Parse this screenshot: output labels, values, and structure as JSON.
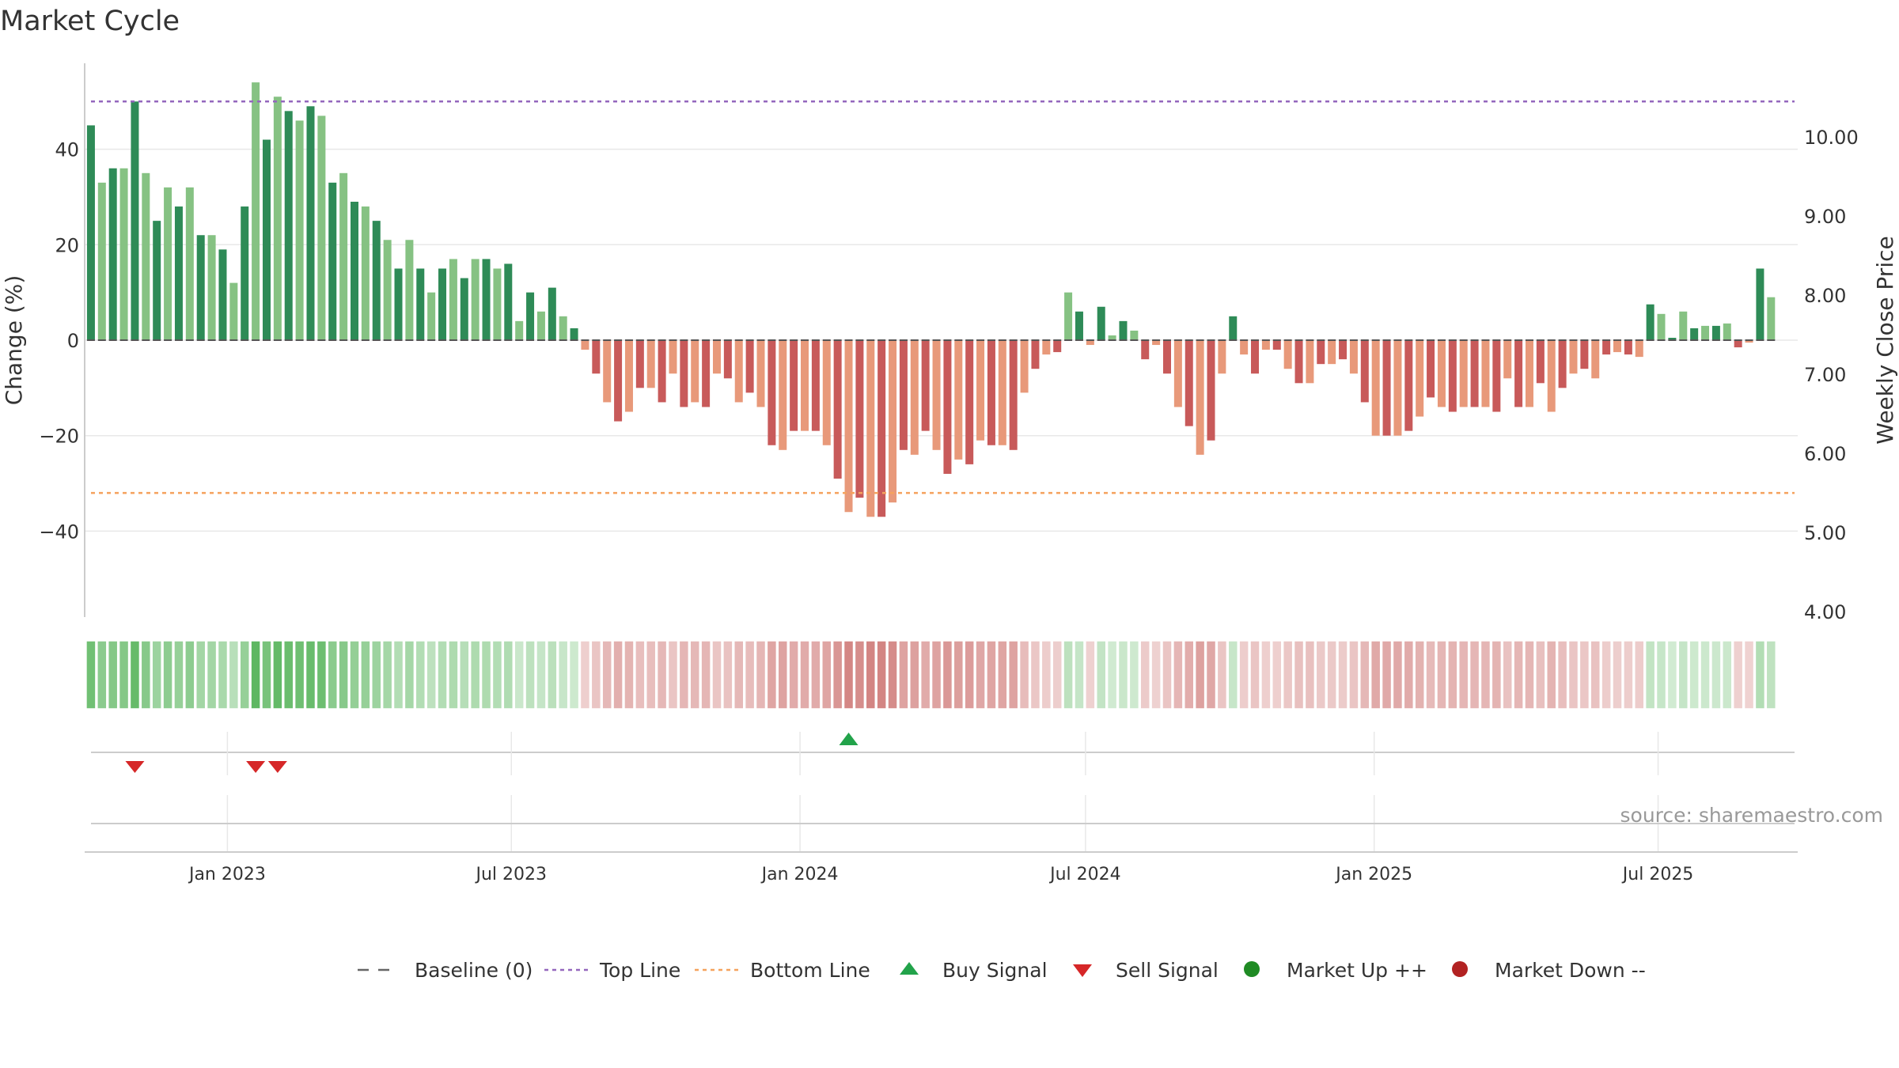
{
  "chart_data": {
    "type": "bar",
    "title": "Market Cycle",
    "ylabel_left": "Change (%)",
    "ylabel_right": "Weekly Close Price",
    "left_axis": {
      "range": [
        -58,
        58
      ],
      "ticks": [
        40,
        20,
        0,
        -20,
        -40
      ],
      "tick_labels": [
        "40",
        "20",
        "0",
        "−20",
        "−40"
      ]
    },
    "right_axis": {
      "range": [
        3.93,
        10.93
      ],
      "ticks": [
        10,
        9,
        8,
        7,
        6,
        5,
        4
      ],
      "tick_labels": [
        "10.00",
        "9.00",
        "8.00",
        "7.00",
        "6.00",
        "5.00",
        "4.00"
      ]
    },
    "x_range": [
      "2022-10-02",
      "2025-09-28"
    ],
    "x_ticks": [
      {
        "date": "2023-01-01",
        "label": "Jan 2023"
      },
      {
        "date": "2023-07-01",
        "label": "Jul 2023"
      },
      {
        "date": "2024-01-01",
        "label": "Jan 2024"
      },
      {
        "date": "2024-07-01",
        "label": "Jul 2024"
      },
      {
        "date": "2025-01-01",
        "label": "Jan 2025"
      },
      {
        "date": "2025-07-01",
        "label": "Jul 2025"
      }
    ],
    "start_week": "2022-10-06",
    "week_interval_days": 7,
    "values": [
      45,
      33,
      36,
      36,
      50,
      35,
      25,
      32,
      28,
      32,
      22,
      22,
      19,
      12,
      28,
      54,
      42,
      51,
      48,
      46,
      49,
      47,
      33,
      35,
      29,
      28,
      25,
      21,
      15,
      21,
      15,
      10,
      15,
      17,
      13,
      17,
      17,
      15,
      16,
      4,
      10,
      6,
      11,
      5,
      2.5,
      -2,
      -7,
      -13,
      -17,
      -15,
      -10,
      -10,
      -13,
      -7,
      -14,
      -13,
      -14,
      -7,
      -8,
      -13,
      -11,
      -14,
      -22,
      -23,
      -19,
      -19,
      -19,
      -22,
      -29,
      -36,
      -33,
      -37,
      -37,
      -34,
      -23,
      -24,
      -19,
      -23,
      -28,
      -25,
      -26,
      -21,
      -22,
      -22,
      -23,
      -11,
      -6,
      -3,
      -2.5,
      10,
      6,
      -1,
      7,
      1,
      4,
      2,
      -4,
      -1,
      -7,
      -14,
      -18,
      -24,
      -21,
      -7,
      5,
      -3,
      -7,
      -2,
      -2,
      -6,
      -9,
      -9,
      -5,
      -5,
      -4,
      -7,
      -13,
      -20,
      -20,
      -20,
      -19,
      -16,
      -12,
      -14,
      -15,
      -14,
      -14,
      -14,
      -15,
      -8,
      -14,
      -14,
      -9,
      -15,
      -10,
      -7,
      -6,
      -8,
      -3,
      -2.5,
      -3,
      -3.5,
      7.5,
      5.5,
      0.5,
      6,
      2.5,
      3,
      3,
      3.5,
      -1.5,
      -0.5,
      15,
      9
    ],
    "price_min": 6.7,
    "price_max": 10.3,
    "reference_lines": [
      {
        "name": "Baseline (0)",
        "y": 0,
        "color": "#666666",
        "style": "dashed"
      },
      {
        "name": "Top Line",
        "y": 50,
        "color": "#9467bd",
        "style": "dotted"
      },
      {
        "name": "Bottom Line",
        "y": -32,
        "color": "#f5a25d",
        "style": "dotted"
      }
    ],
    "signals": {
      "buy": [
        {
          "week": 69
        }
      ],
      "sell": [
        {
          "week": 4
        },
        {
          "week": 15
        },
        {
          "week": 17
        }
      ]
    },
    "legend": [
      {
        "label": "Baseline (0)",
        "marker": "dash",
        "color": "#666666"
      },
      {
        "label": "Top Line",
        "marker": "dotted-line",
        "color": "#9467bd"
      },
      {
        "label": "Bottom Line",
        "marker": "dotted-line",
        "color": "#f5a25d"
      },
      {
        "label": "Buy Signal",
        "marker": "triangle-up",
        "color": "#22a34a"
      },
      {
        "label": "Sell Signal",
        "marker": "triangle-down",
        "color": "#d62728"
      },
      {
        "label": "Market Up ++",
        "marker": "circle",
        "color": "#1f8b24"
      },
      {
        "label": "Market Down --",
        "marker": "circle",
        "color": "#b22222"
      }
    ],
    "legend_position": "bottom-center",
    "grid": true
  },
  "colors": {
    "bar_up_dark": "#2e8b57",
    "bar_up_light": "#86c283",
    "bar_down_dark": "#c85a5a",
    "bar_down_light": "#e8997a",
    "strip_up": "#4caf50",
    "strip_down": "#c0504d",
    "grid": "#e8e8e8",
    "axis": "#cccccc"
  },
  "source_text": "source: sharemaestro.com"
}
